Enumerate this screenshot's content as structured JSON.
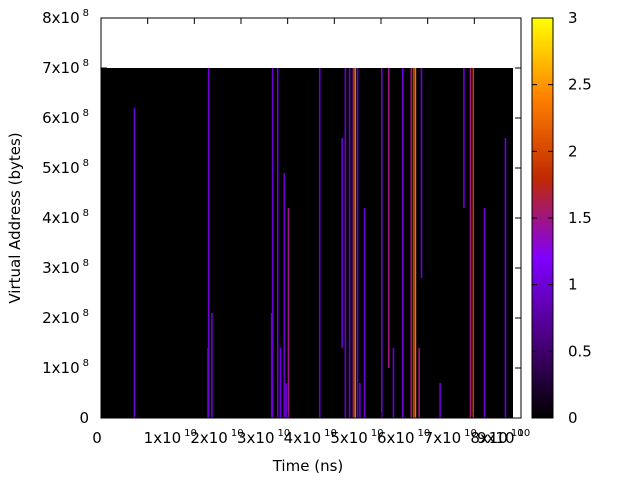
{
  "chart_data": {
    "type": "heatmap",
    "title": "",
    "xlabel": "Time (ns)",
    "ylabel": "Virtual Address (bytes)",
    "xlim": [
      0,
      90000000000
    ],
    "ylim": [
      0,
      800000000
    ],
    "grid": false,
    "legend": "colorbar-right",
    "x_ticks": [
      {
        "value": 0,
        "mant": "0",
        "exp": ""
      },
      {
        "value": 10000000000,
        "mant": "1x10",
        "exp": "10"
      },
      {
        "value": 20000000000,
        "mant": "2x10",
        "exp": "10"
      },
      {
        "value": 30000000000,
        "mant": "3x10",
        "exp": "10"
      },
      {
        "value": 40000000000,
        "mant": "4x10",
        "exp": "10"
      },
      {
        "value": 50000000000,
        "mant": "5x10",
        "exp": "10"
      },
      {
        "value": 60000000000,
        "mant": "6x10",
        "exp": "10"
      },
      {
        "value": 70000000000,
        "mant": "7x10",
        "exp": "10"
      },
      {
        "value": 80000000000,
        "mant": "8x10",
        "exp": "10"
      },
      {
        "value": 90000000000,
        "mant": "9x10",
        "exp": "10"
      }
    ],
    "y_ticks": [
      {
        "value": 0,
        "mant": "0",
        "exp": ""
      },
      {
        "value": 100000000,
        "mant": "1x10",
        "exp": "8"
      },
      {
        "value": 200000000,
        "mant": "2x10",
        "exp": "8"
      },
      {
        "value": 300000000,
        "mant": "3x10",
        "exp": "8"
      },
      {
        "value": 400000000,
        "mant": "4x10",
        "exp": "8"
      },
      {
        "value": 500000000,
        "mant": "5x10",
        "exp": "8"
      },
      {
        "value": 600000000,
        "mant": "6x10",
        "exp": "8"
      },
      {
        "value": 700000000,
        "mant": "7x10",
        "exp": "8"
      },
      {
        "value": 800000000,
        "mant": "8x10",
        "exp": "8"
      }
    ],
    "colorbar": {
      "min": 0,
      "max": 3,
      "ticks": [
        {
          "value": 0,
          "label": "0"
        },
        {
          "value": 0.5,
          "label": "0.5"
        },
        {
          "value": 1,
          "label": "1"
        },
        {
          "value": 1.5,
          "label": "1.5"
        },
        {
          "value": 2,
          "label": "2"
        },
        {
          "value": 2.5,
          "label": "2.5"
        },
        {
          "value": 3,
          "label": "3"
        }
      ],
      "palette": [
        "#000000",
        "#4b0080",
        "#8000ff",
        "#c02a00",
        "#ff8000",
        "#ffff00"
      ]
    },
    "background": {
      "x0": 0,
      "x1": 90000000000,
      "y0": 0,
      "y1": 700000000,
      "value": 0
    },
    "streaks": [
      {
        "x": 7000000000,
        "y0": 0,
        "y1": 620000000,
        "value": 1.0
      },
      {
        "x": 22800000000,
        "y0": 0,
        "y1": 140000000,
        "value": 1.5
      },
      {
        "x": 22900000000,
        "y0": 0,
        "y1": 700000000,
        "value": 1.0
      },
      {
        "x": 23600000000,
        "y0": 0,
        "y1": 210000000,
        "value": 1.0
      },
      {
        "x": 36400000000,
        "y0": 0,
        "y1": 210000000,
        "value": 1.0
      },
      {
        "x": 36600000000,
        "y0": 0,
        "y1": 700000000,
        "value": 1.0
      },
      {
        "x": 37700000000,
        "y0": 0,
        "y1": 700000000,
        "value": 1.0
      },
      {
        "x": 38300000000,
        "y0": 0,
        "y1": 140000000,
        "value": 1.0
      },
      {
        "x": 39100000000,
        "y0": 0,
        "y1": 490000000,
        "value": 1.0
      },
      {
        "x": 40000000000,
        "y0": 0,
        "y1": 420000000,
        "value": 1.5
      },
      {
        "x": 39500000000,
        "y0": 0,
        "y1": 70000000,
        "value": 1.0
      },
      {
        "x": 46700000000,
        "y0": 0,
        "y1": 700000000,
        "value": 1.0
      },
      {
        "x": 51500000000,
        "y0": 140000000,
        "y1": 560000000,
        "value": 1.0
      },
      {
        "x": 52200000000,
        "y0": 0,
        "y1": 700000000,
        "value": 1.0
      },
      {
        "x": 53100000000,
        "y0": 0,
        "y1": 700000000,
        "value": 1.0
      },
      {
        "x": 53900000000,
        "y0": 0,
        "y1": 700000000,
        "value": 1.5
      },
      {
        "x": 54300000000,
        "y0": 0,
        "y1": 700000000,
        "value": 2.3
      },
      {
        "x": 54800000000,
        "y0": 0,
        "y1": 700000000,
        "value": 1.0
      },
      {
        "x": 55300000000,
        "y0": 0,
        "y1": 70000000,
        "value": 1.0
      },
      {
        "x": 56300000000,
        "y0": 0,
        "y1": 420000000,
        "value": 1.0
      },
      {
        "x": 60000000000,
        "y0": 0,
        "y1": 700000000,
        "value": 1.0
      },
      {
        "x": 61500000000,
        "y0": 100000000,
        "y1": 700000000,
        "value": 1.5
      },
      {
        "x": 62500000000,
        "y0": 0,
        "y1": 140000000,
        "value": 1.0
      },
      {
        "x": 64500000000,
        "y0": 0,
        "y1": 700000000,
        "value": 1.0
      },
      {
        "x": 66300000000,
        "y0": 0,
        "y1": 700000000,
        "value": 1.5
      },
      {
        "x": 66800000000,
        "y0": 0,
        "y1": 700000000,
        "value": 1.9
      },
      {
        "x": 67200000000,
        "y0": 0,
        "y1": 700000000,
        "value": 2.3
      },
      {
        "x": 68000000000,
        "y0": 0,
        "y1": 140000000,
        "value": 1.5
      },
      {
        "x": 68500000000,
        "y0": 280000000,
        "y1": 700000000,
        "value": 1.0
      },
      {
        "x": 72500000000,
        "y0": 0,
        "y1": 70000000,
        "value": 1.0
      },
      {
        "x": 77600000000,
        "y0": 420000000,
        "y1": 700000000,
        "value": 1.0
      },
      {
        "x": 79000000000,
        "y0": 0,
        "y1": 700000000,
        "value": 1.5
      },
      {
        "x": 79600000000,
        "y0": 0,
        "y1": 700000000,
        "value": 1.9
      },
      {
        "x": 82000000000,
        "y0": 0,
        "y1": 420000000,
        "value": 1.0
      },
      {
        "x": 86500000000,
        "y0": 0,
        "y1": 560000000,
        "value": 1.0
      }
    ]
  }
}
